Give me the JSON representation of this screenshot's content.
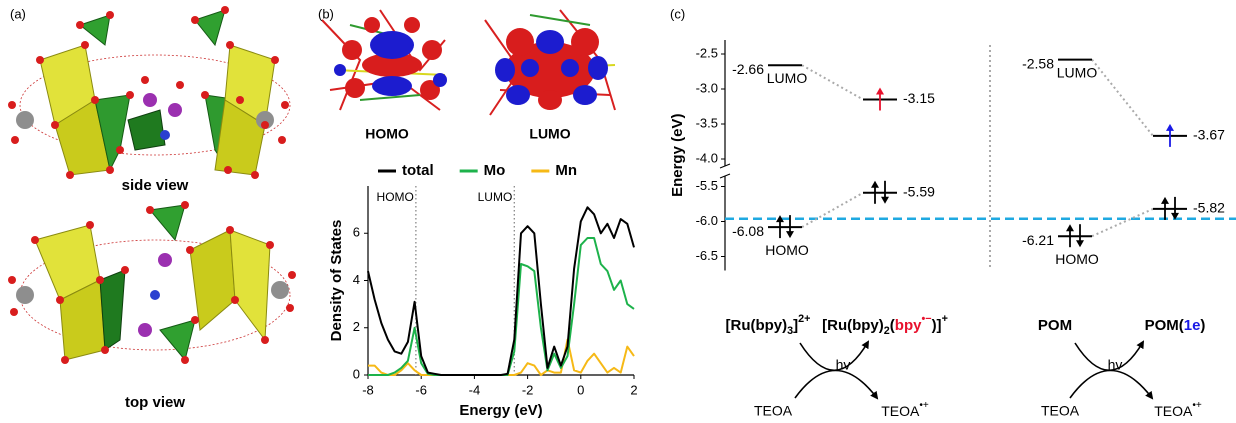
{
  "panels": {
    "a": {
      "label": "(a)",
      "captions": [
        "side view",
        "top view"
      ]
    },
    "b": {
      "label": "(b)",
      "orbitals": [
        "HOMO",
        "LUMO"
      ]
    },
    "c": {
      "label": "(c)",
      "schemes": [
        {
          "reactant": [
            {
              "text": "[Ru(bpy)"
            },
            {
              "text": "3",
              "style": "sub"
            },
            {
              "text": "]"
            },
            {
              "text": "2+",
              "style": "sup"
            }
          ],
          "product": [
            {
              "text": "[Ru(bpy)"
            },
            {
              "text": "2",
              "style": "sub"
            },
            {
              "text": "("
            },
            {
              "text": "bpy",
              "color": "#e8112d"
            },
            {
              "text": "•−",
              "style": "sup",
              "color": "#e8112d"
            },
            {
              "text": ")]"
            },
            {
              "text": "+",
              "style": "sup"
            }
          ],
          "light": "hv",
          "donor": "TEOA",
          "donor_product": [
            {
              "text": "TEOA"
            },
            {
              "text": "•+",
              "style": "sup"
            }
          ]
        },
        {
          "reactant": [
            {
              "text": "POM"
            }
          ],
          "product": [
            {
              "text": "POM("
            },
            {
              "text": "1e",
              "color": "#1a1ae6"
            },
            {
              "text": ")"
            }
          ],
          "light": "hv",
          "donor": "TEOA",
          "donor_product": [
            {
              "text": "TEOA"
            },
            {
              "text": "•+",
              "style": "sup"
            }
          ]
        }
      ]
    }
  },
  "chart_data": [
    {
      "type": "line",
      "xlabel": "Energy (eV)",
      "ylabel": "Density of States",
      "xlim": [
        -8,
        2
      ],
      "xticks": [
        -8,
        -6,
        -4,
        -2,
        0,
        2
      ],
      "ylim": [
        0,
        8
      ],
      "yticks": [
        0,
        2,
        4,
        6
      ],
      "legend": "top",
      "x": [
        -8,
        -7.75,
        -7.5,
        -7.25,
        -7,
        -6.75,
        -6.5,
        -6.25,
        -6,
        -5.75,
        -5.5,
        -5.25,
        -5,
        -4.75,
        -4.5,
        -4.25,
        -4,
        -3.75,
        -3.5,
        -3.25,
        -3,
        -2.75,
        -2.5,
        -2.25,
        -2,
        -1.75,
        -1.5,
        -1.25,
        -1,
        -0.75,
        -0.5,
        -0.25,
        0,
        0.25,
        0.5,
        0.75,
        1,
        1.25,
        1.5,
        1.75,
        2
      ],
      "series": [
        {
          "name": "total",
          "color": "#000000",
          "values": [
            4.4,
            3.2,
            2.2,
            1.5,
            1.0,
            0.9,
            1.4,
            3.1,
            0.8,
            0.1,
            0.05,
            0,
            0,
            0,
            0,
            0,
            0,
            0,
            0,
            0,
            0,
            0.05,
            1.5,
            6.0,
            6.3,
            6.0,
            3.0,
            0.3,
            1.2,
            0.4,
            1.2,
            4.5,
            6.5,
            7.1,
            6.8,
            6.0,
            6.4,
            5.8,
            6.6,
            6.4,
            5.4
          ]
        },
        {
          "name": "Mo",
          "color": "#1db24b",
          "values": [
            0,
            0,
            0,
            0,
            0.1,
            0.3,
            0.6,
            2.0,
            0.5,
            0.05,
            0,
            0,
            0,
            0,
            0,
            0,
            0,
            0,
            0,
            0,
            0,
            0,
            1.0,
            4.7,
            4.6,
            4.4,
            2.0,
            0.2,
            0.9,
            0.3,
            0.8,
            3.0,
            5.5,
            5.8,
            5.8,
            4.7,
            4.4,
            3.6,
            4.0,
            3.0,
            2.8
          ]
        },
        {
          "name": "Mn",
          "color": "#f6b916",
          "values": [
            0.4,
            0.4,
            0.1,
            0,
            0,
            0.2,
            0.5,
            0.2,
            0,
            0,
            0,
            0,
            0,
            0,
            0,
            0,
            0,
            0,
            0,
            0,
            0,
            0,
            0,
            0.1,
            0.5,
            0.4,
            0,
            0.2,
            0.1,
            0.1,
            1.5,
            0.2,
            0.1,
            0.6,
            0.9,
            0.5,
            0.1,
            0.3,
            0.1,
            1.2,
            0.8
          ]
        }
      ],
      "annotations": [
        {
          "x": -6.2,
          "text": "HOMO"
        },
        {
          "x": -2.5,
          "text": "LUMO"
        }
      ]
    },
    {
      "type": "energy-level",
      "ylabel": "Energy (eV)",
      "ylim": [
        -6.7,
        -2.3
      ],
      "axis_break": [
        -4.1,
        -5.35
      ],
      "yticks": [
        -2.5,
        {
          "value": -3,
          "label": "-3.0"
        },
        -3.5,
        {
          "value": -4,
          "label": "-4.0"
        },
        -5.5,
        {
          "value": -6,
          "label": "-6.0"
        },
        -6.5
      ],
      "series": [
        {
          "values": [
            -2.66,
            -6.08
          ],
          "level_labels": [
            "LUMO",
            "HOMO"
          ],
          "electrons": [
            0,
            2
          ],
          "arrow_colors": [
            "#000000",
            "#000000"
          ],
          "label_side": "left"
        },
        {
          "values": [
            -3.15,
            -5.59
          ],
          "electrons": [
            1,
            2
          ],
          "arrow_colors": [
            "#e8112d",
            "#000000"
          ],
          "label_side": "right"
        },
        {
          "values": [
            -2.58,
            -6.21
          ],
          "level_labels": [
            "LUMO",
            "HOMO"
          ],
          "electrons": [
            0,
            2
          ],
          "arrow_colors": [
            "#000000",
            "#000000"
          ],
          "label_side": "left"
        },
        {
          "values": [
            -3.67,
            -5.82
          ],
          "electrons": [
            1,
            2
          ],
          "arrow_colors": [
            "#1a1ae6",
            "#000000"
          ],
          "label_side": "right"
        }
      ],
      "connectors": [
        [
          0,
          1
        ],
        [
          2,
          3
        ]
      ],
      "reference_line": {
        "value": -5.96,
        "color": "#1fa9e1",
        "style": "dashed"
      }
    }
  ]
}
